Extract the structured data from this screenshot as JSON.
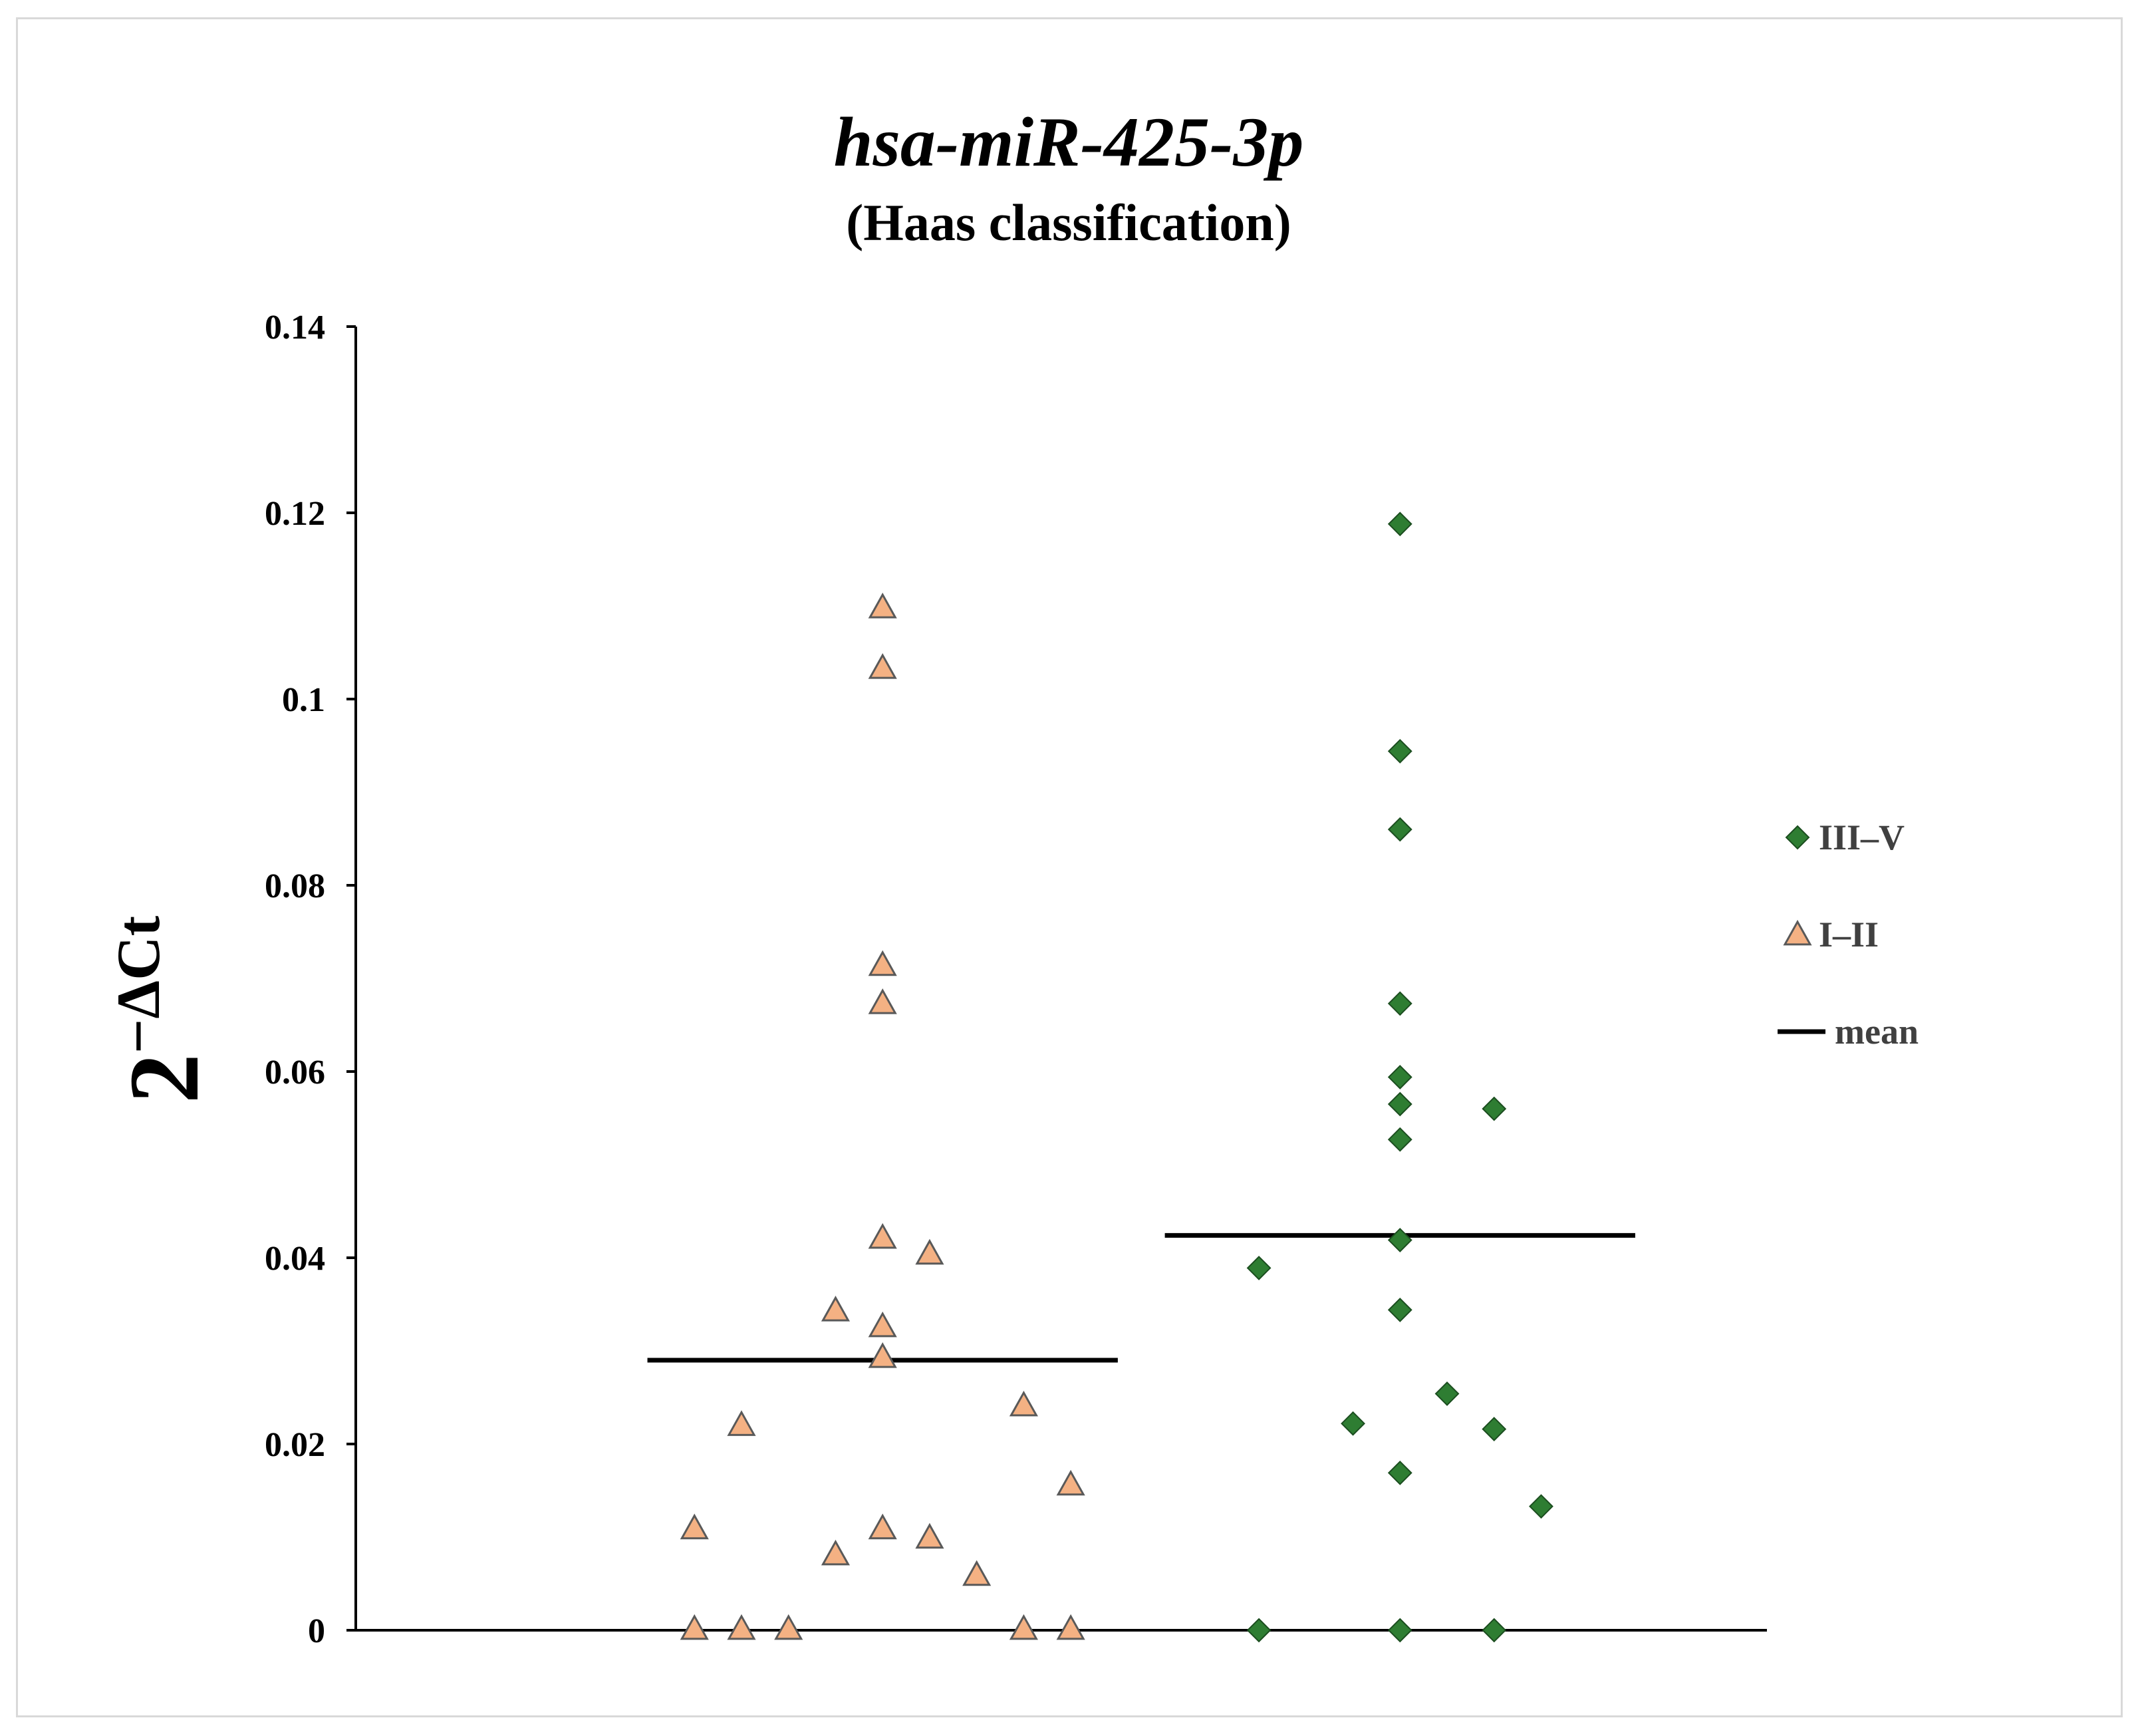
{
  "chart_data": {
    "type": "scatter",
    "title": "hsa-miR-425-3p",
    "subtitle": "(Haas classification)",
    "ylabel_base": "2",
    "ylabel_sup": "−ΔCt",
    "xlabel": "",
    "ylim": [
      0,
      0.14
    ],
    "yticks": [
      0,
      0.02,
      0.04,
      0.06,
      0.08,
      0.1,
      0.12,
      0.14
    ],
    "ytick_labels": [
      "0",
      "0.02",
      "0.04",
      "0.06",
      "0.08",
      "0.1",
      "0.12",
      "0.14"
    ],
    "xlim": [
      0,
      3
    ],
    "grid": false,
    "legend_position": "right",
    "series": [
      {
        "name": "III–V",
        "marker": "diamond",
        "color": "#2e7d32",
        "points": [
          {
            "x": 1.92,
            "y": 0.0
          },
          {
            "x": 2.22,
            "y": 0.0
          },
          {
            "x": 2.42,
            "y": 0.0
          },
          {
            "x": 2.52,
            "y": 0.0133
          },
          {
            "x": 2.22,
            "y": 0.0169
          },
          {
            "x": 2.42,
            "y": 0.0216
          },
          {
            "x": 2.12,
            "y": 0.0222
          },
          {
            "x": 2.32,
            "y": 0.0254
          },
          {
            "x": 2.22,
            "y": 0.0344
          },
          {
            "x": 1.92,
            "y": 0.0389
          },
          {
            "x": 2.22,
            "y": 0.0419
          },
          {
            "x": 2.22,
            "y": 0.0527
          },
          {
            "x": 2.42,
            "y": 0.056
          },
          {
            "x": 2.22,
            "y": 0.0565
          },
          {
            "x": 2.22,
            "y": 0.0594
          },
          {
            "x": 2.22,
            "y": 0.0673
          },
          {
            "x": 2.22,
            "y": 0.086
          },
          {
            "x": 2.22,
            "y": 0.0944
          },
          {
            "x": 2.22,
            "y": 0.1188
          }
        ],
        "mean": 0.0424,
        "mean_x_range": [
          1.72,
          2.72
        ]
      },
      {
        "name": "I–II",
        "marker": "triangle",
        "color": "#f4b183",
        "points": [
          {
            "x": 0.72,
            "y": 0.0
          },
          {
            "x": 0.82,
            "y": 0.0
          },
          {
            "x": 0.92,
            "y": 0.0
          },
          {
            "x": 1.42,
            "y": 0.0
          },
          {
            "x": 1.52,
            "y": 0.0
          },
          {
            "x": 1.32,
            "y": 0.0058
          },
          {
            "x": 1.02,
            "y": 0.008
          },
          {
            "x": 1.22,
            "y": 0.0098
          },
          {
            "x": 0.72,
            "y": 0.0108
          },
          {
            "x": 1.12,
            "y": 0.0108
          },
          {
            "x": 1.52,
            "y": 0.0155
          },
          {
            "x": 0.82,
            "y": 0.0219
          },
          {
            "x": 1.42,
            "y": 0.024
          },
          {
            "x": 1.12,
            "y": 0.0292
          },
          {
            "x": 1.12,
            "y": 0.0325
          },
          {
            "x": 1.02,
            "y": 0.0342
          },
          {
            "x": 1.22,
            "y": 0.0403
          },
          {
            "x": 1.12,
            "y": 0.042
          },
          {
            "x": 1.12,
            "y": 0.0672
          },
          {
            "x": 1.12,
            "y": 0.0713
          },
          {
            "x": 1.12,
            "y": 0.1032
          },
          {
            "x": 1.12,
            "y": 0.1097
          }
        ],
        "mean": 0.029,
        "mean_x_range": [
          0.62,
          1.62
        ]
      }
    ],
    "legend": [
      {
        "label": "III–V",
        "marker": "diamond"
      },
      {
        "label": "I–II",
        "marker": "triangle"
      },
      {
        "label": "mean",
        "marker": "line"
      }
    ]
  }
}
